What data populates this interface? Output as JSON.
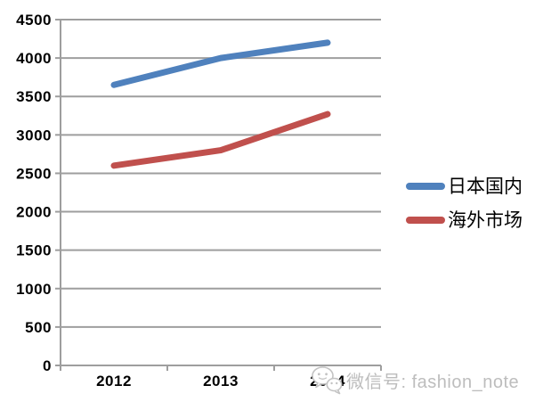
{
  "page": {
    "background": "#ffffff"
  },
  "chart_data": {
    "type": "line",
    "title": "",
    "xlabel": "",
    "ylabel": "",
    "categories": [
      "2012",
      "2013",
      "2014"
    ],
    "series": [
      {
        "name": "日本国内",
        "color": "#4F81BD",
        "values": [
          3650,
          4000,
          4200
        ]
      },
      {
        "name": "海外市场",
        "color": "#C0504D",
        "values": [
          2600,
          2800,
          3270
        ]
      }
    ],
    "ylim": [
      0,
      4500
    ],
    "yticks": [
      0,
      500,
      1000,
      1500,
      2000,
      2500,
      3000,
      3500,
      4000,
      4500
    ],
    "grid": true,
    "legend_position": "right",
    "axis_color": "#9e9e9e",
    "tick_label_color": "#000000",
    "line_width": 7
  },
  "watermark": {
    "icon": "wechat-icon",
    "text": "微信号: fashion_note",
    "color": "#bdbdbd"
  }
}
